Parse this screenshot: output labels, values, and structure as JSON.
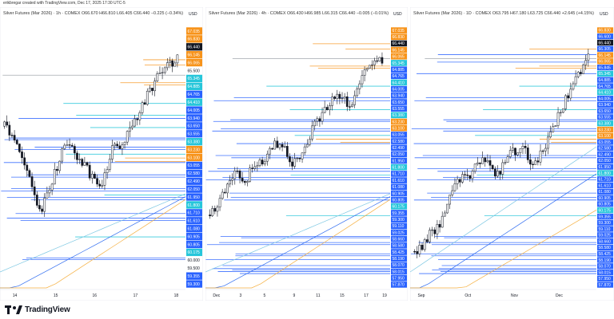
{
  "header": {
    "text": "erikbregar created with TradingView.com, Dec 17, 2025 17:30 UTC-5"
  },
  "footer": {
    "brand": "TradingView"
  },
  "panels": [
    {
      "title": "Silver Futures (Mar 2026) · 1h · COMEX  O66.670  H66.810  L66.405  C66.440  −0.225 (−0.34%)",
      "currency": "USD",
      "ymin": 58.2,
      "ymax": 68.3,
      "last_price": 66.44,
      "x_ticks": [
        {
          "label": "14",
          "pos": 0.08
        },
        {
          "label": "15",
          "pos": 0.3
        },
        {
          "label": "16",
          "pos": 0.51
        },
        {
          "label": "17",
          "pos": 0.73
        },
        {
          "label": "18",
          "pos": 0.95
        }
      ],
      "price_labels": [
        {
          "text": "67.035",
          "color": "#f7931a"
        },
        {
          "text": "66.830",
          "color": "#f7931a"
        },
        {
          "text": "66.440",
          "color": "#131722"
        },
        {
          "text": "66.145",
          "color": "#f7931a"
        },
        {
          "text": "66.065",
          "color": "#f7931a"
        },
        {
          "text": "65.500",
          "color": "none"
        },
        {
          "text": "65.345",
          "color": "#26c6da"
        },
        {
          "text": "64.885",
          "color": "#26c6da"
        },
        {
          "text": "64.765",
          "color": "#2962ff"
        },
        {
          "text": "64.410",
          "color": "#26c6da"
        },
        {
          "text": "64.005",
          "color": "#2962ff"
        },
        {
          "text": "63.940",
          "color": "#2962ff"
        },
        {
          "text": "63.650",
          "color": "#2962ff"
        },
        {
          "text": "63.555",
          "color": "#2962ff"
        },
        {
          "text": "63.380",
          "color": "#26c6da"
        },
        {
          "text": "63.230",
          "color": "#f7931a"
        },
        {
          "text": "63.100",
          "color": "#f7931a"
        },
        {
          "text": "63.055",
          "color": "#2962ff"
        },
        {
          "text": "62.580",
          "color": "#2962ff"
        },
        {
          "text": "62.490",
          "color": "#2962ff"
        },
        {
          "text": "62.050",
          "color": "#2962ff"
        },
        {
          "text": "61.950",
          "color": "#2962ff"
        },
        {
          "text": "61.800",
          "color": "#26c6da"
        },
        {
          "text": "61.710",
          "color": "#2962ff"
        },
        {
          "text": "61.610",
          "color": "#2962ff"
        },
        {
          "text": "61.080",
          "color": "#2962ff"
        },
        {
          "text": "60.905",
          "color": "#2962ff"
        },
        {
          "text": "60.805",
          "color": "#2962ff"
        },
        {
          "text": "60.175",
          "color": "#26c6da"
        },
        {
          "text": "60.000",
          "color": "none"
        },
        {
          "text": "59.500",
          "color": "none"
        },
        {
          "text": "59.355",
          "color": "#2962ff"
        },
        {
          "text": "59.300",
          "color": "#2962ff"
        }
      ]
    },
    {
      "title": "Silver Futures (Mar 2026) · 4h · COMEX  O66.430  H66.985  L66.315  C66.440  −0.005 (−0.01%)",
      "currency": "USD",
      "ymin": 57.3,
      "ymax": 67.7,
      "last_price": 66.44,
      "x_ticks": [
        {
          "label": "Dec",
          "pos": 0.06
        },
        {
          "label": "3",
          "pos": 0.19
        },
        {
          "label": "5",
          "pos": 0.32
        },
        {
          "label": "9",
          "pos": 0.48
        },
        {
          "label": "11",
          "pos": 0.61
        },
        {
          "label": "15",
          "pos": 0.74
        },
        {
          "label": "17",
          "pos": 0.87
        },
        {
          "label": "19",
          "pos": 0.97
        }
      ],
      "price_labels": [
        {
          "text": "67.035",
          "color": "#f7931a"
        },
        {
          "text": "66.830",
          "color": "#f7931a"
        },
        {
          "text": "66.440",
          "color": "#131722"
        },
        {
          "text": "66.145",
          "color": "#f7931a"
        },
        {
          "text": "66.065",
          "color": "#f7931a"
        },
        {
          "text": "65.345",
          "color": "#26c6da"
        },
        {
          "text": "64.885",
          "color": "#2962ff"
        },
        {
          "text": "64.765",
          "color": "#2962ff"
        },
        {
          "text": "64.410",
          "color": "#26c6da"
        },
        {
          "text": "64.005",
          "color": "#2962ff"
        },
        {
          "text": "63.940",
          "color": "#2962ff"
        },
        {
          "text": "63.650",
          "color": "#2962ff"
        },
        {
          "text": "63.555",
          "color": "#2962ff"
        },
        {
          "text": "63.380",
          "color": "#26c6da"
        },
        {
          "text": "63.230",
          "color": "#f7931a"
        },
        {
          "text": "63.100",
          "color": "#f7931a"
        },
        {
          "text": "63.055",
          "color": "#2962ff"
        },
        {
          "text": "62.580",
          "color": "#2962ff"
        },
        {
          "text": "62.490",
          "color": "#2962ff"
        },
        {
          "text": "62.050",
          "color": "#2962ff"
        },
        {
          "text": "61.950",
          "color": "#2962ff"
        },
        {
          "text": "61.800",
          "color": "#26c6da"
        },
        {
          "text": "61.710",
          "color": "#2962ff"
        },
        {
          "text": "61.610",
          "color": "#2962ff"
        },
        {
          "text": "61.080",
          "color": "#2962ff"
        },
        {
          "text": "60.905",
          "color": "#2962ff"
        },
        {
          "text": "60.805",
          "color": "#2962ff"
        },
        {
          "text": "60.175",
          "color": "#26c6da"
        },
        {
          "text": "59.355",
          "color": "#2962ff"
        },
        {
          "text": "59.300",
          "color": "#2962ff"
        },
        {
          "text": "59.110",
          "color": "#2962ff"
        },
        {
          "text": "59.025",
          "color": "#2962ff"
        },
        {
          "text": "58.660",
          "color": "#2962ff"
        },
        {
          "text": "58.580",
          "color": "#2962ff"
        },
        {
          "text": "58.425",
          "color": "#2962ff"
        },
        {
          "text": "58.190",
          "color": "#2962ff"
        },
        {
          "text": "58.070",
          "color": "#2962ff"
        },
        {
          "text": "58.015",
          "color": "#2962ff"
        },
        {
          "text": "57.950",
          "color": "#2962ff"
        },
        {
          "text": "57.870",
          "color": "#2962ff"
        }
      ]
    },
    {
      "title": "Silver Futures (Mar 2026) · 1D · COMEX  O63.795  H67.180  L63.725  C66.440  +2.645 (+4.15%)",
      "currency": "USD",
      "ymin": 57.3,
      "ymax": 67.7,
      "last_price": 66.44,
      "x_ticks": [
        {
          "label": "Sep",
          "pos": 0.06
        },
        {
          "label": "Oct",
          "pos": 0.31
        },
        {
          "label": "Nov",
          "pos": 0.56
        },
        {
          "label": "Dec",
          "pos": 0.8
        }
      ],
      "price_labels": [
        {
          "text": "66.830",
          "color": "#f7931a"
        },
        {
          "text": "66.600",
          "color": "#2962ff"
        },
        {
          "text": "66.440",
          "color": "#131722"
        },
        {
          "text": "66.305",
          "color": "#2962ff"
        },
        {
          "text": "66.145",
          "color": "#f7931a"
        },
        {
          "text": "66.065",
          "color": "#f7931a"
        },
        {
          "text": "65.845",
          "color": "#2962ff"
        },
        {
          "text": "65.345",
          "color": "#26c6da"
        },
        {
          "text": "64.885",
          "color": "#2962ff"
        },
        {
          "text": "64.765",
          "color": "#2962ff"
        },
        {
          "text": "64.410",
          "color": "#26c6da"
        },
        {
          "text": "64.005",
          "color": "#2962ff"
        },
        {
          "text": "63.940",
          "color": "#2962ff"
        },
        {
          "text": "63.650",
          "color": "#2962ff"
        },
        {
          "text": "63.555",
          "color": "#2962ff"
        },
        {
          "text": "63.380",
          "color": "#26c6da"
        },
        {
          "text": "63.230",
          "color": "#f7931a"
        },
        {
          "text": "63.100",
          "color": "#f7931a"
        },
        {
          "text": "63.055",
          "color": "#2962ff"
        },
        {
          "text": "62.580",
          "color": "#2962ff"
        },
        {
          "text": "62.490",
          "color": "#2962ff"
        },
        {
          "text": "62.050",
          "color": "#2962ff"
        },
        {
          "text": "61.950",
          "color": "#2962ff"
        },
        {
          "text": "61.800",
          "color": "#26c6da"
        },
        {
          "text": "61.710",
          "color": "#2962ff"
        },
        {
          "text": "61.610",
          "color": "#2962ff"
        },
        {
          "text": "61.080",
          "color": "#2962ff"
        },
        {
          "text": "60.905",
          "color": "#2962ff"
        },
        {
          "text": "60.805",
          "color": "#2962ff"
        },
        {
          "text": "60.175",
          "color": "#26c6da"
        },
        {
          "text": "59.355",
          "color": "#2962ff"
        },
        {
          "text": "59.300",
          "color": "#2962ff"
        },
        {
          "text": "59.110",
          "color": "#2962ff"
        },
        {
          "text": "59.025",
          "color": "#2962ff"
        },
        {
          "text": "58.660",
          "color": "#2962ff"
        },
        {
          "text": "58.580",
          "color": "#2962ff"
        },
        {
          "text": "58.425",
          "color": "#2962ff"
        },
        {
          "text": "58.190",
          "color": "#2962ff"
        },
        {
          "text": "58.070",
          "color": "#2962ff"
        },
        {
          "text": "58.015",
          "color": "#2962ff"
        },
        {
          "text": "57.950",
          "color": "#2962ff"
        },
        {
          "text": "57.870",
          "color": "#2962ff"
        }
      ]
    }
  ],
  "chart_data": [
    {
      "type": "candlestick",
      "interval": "1h",
      "symbol": "Silver Futures (Mar 2026)",
      "exchange": "COMEX",
      "open": 66.67,
      "high": 66.81,
      "low": 66.405,
      "close": 66.44,
      "change": -0.225,
      "change_pct": -0.34,
      "x_range": [
        "Dec 13",
        "Dec 18"
      ],
      "price_range": [
        59.3,
        67.2
      ]
    },
    {
      "type": "candlestick",
      "interval": "4h",
      "symbol": "Silver Futures (Mar 2026)",
      "exchange": "COMEX",
      "open": 66.43,
      "high": 66.985,
      "low": 66.315,
      "close": 66.44,
      "change": -0.005,
      "change_pct": -0.01,
      "x_range": [
        "Dec 1",
        "Dec 19"
      ],
      "price_range": [
        57.9,
        67.2
      ]
    },
    {
      "type": "candlestick",
      "interval": "1D",
      "symbol": "Silver Futures (Mar 2026)",
      "exchange": "COMEX",
      "open": 63.795,
      "high": 67.18,
      "low": 63.725,
      "close": 66.44,
      "change": 2.645,
      "change_pct": 4.15,
      "x_range": [
        "Sep",
        "Dec"
      ],
      "price_range": [
        57.9,
        67.2
      ]
    }
  ],
  "colors": {
    "up": "#131722",
    "down": "#131722",
    "blue": "#2962ff",
    "cyan": "#26c6da",
    "orange": "#f7931a",
    "ma_light": "#7ec8e3",
    "ma_orange": "#f5b041",
    "ma_blue": "#2f6cf0"
  }
}
